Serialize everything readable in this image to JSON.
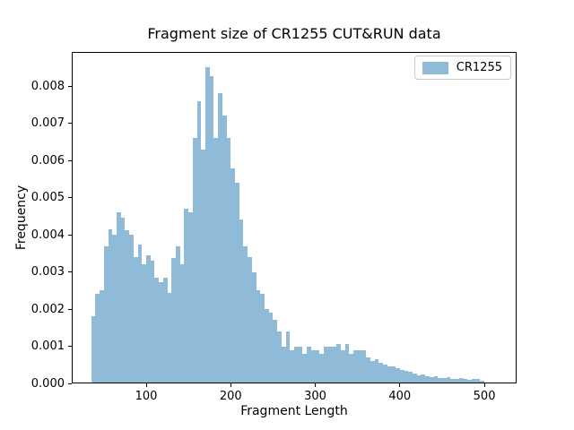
{
  "window": {
    "title": "Fragment size of CR1255 CUT&RUN data"
  },
  "legend": {
    "label": "CR1255",
    "position": "upper right"
  },
  "colors": {
    "bar": "#8fbbd9",
    "axis": "#000000",
    "background": "#ffffff",
    "legend_border": "#cccccc",
    "text": "#000000"
  },
  "chart_data": {
    "type": "bar",
    "subtype": "histogram",
    "title": "Fragment size of CR1255 CUT&RUN data",
    "xlabel": "Fragment Length",
    "ylabel": "Frequency",
    "legend_entries": [
      "CR1255"
    ],
    "legend_position": "upper right",
    "grid": false,
    "bin_start": 35,
    "bin_width": 5,
    "xlim": [
      11.9,
      538.1
    ],
    "ylim": [
      0,
      0.00892
    ],
    "x_ticks": [
      100,
      200,
      300,
      400,
      500
    ],
    "y_ticks": [
      0,
      0.001,
      0.002,
      0.003,
      0.004,
      0.005,
      0.006,
      0.007,
      0.008
    ],
    "y_tick_labels": [
      "0.000",
      "0.001",
      "0.002",
      "0.003",
      "0.004",
      "0.005",
      "0.006",
      "0.007",
      "0.008"
    ],
    "values": [
      0.0018,
      0.0024,
      0.0025,
      0.0037,
      0.00415,
      0.004,
      0.0046,
      0.00445,
      0.00413,
      0.004,
      0.00341,
      0.00373,
      0.0032,
      0.00344,
      0.0033,
      0.00284,
      0.00272,
      0.00284,
      0.00244,
      0.00337,
      0.00369,
      0.0032,
      0.0047,
      0.0046,
      0.0066,
      0.0076,
      0.0063,
      0.0085,
      0.00827,
      0.0066,
      0.0078,
      0.0072,
      0.0066,
      0.00578,
      0.0054,
      0.00441,
      0.0037,
      0.0034,
      0.003,
      0.0025,
      0.0024,
      0.002,
      0.0019,
      0.0017,
      0.0014,
      0.001,
      0.0014,
      0.0009,
      0.001,
      0.001,
      0.0008,
      0.001,
      0.0009,
      0.0009,
      0.0008,
      0.001,
      0.001,
      0.001,
      0.00105,
      0.0009,
      0.00105,
      0.0008,
      0.0009,
      0.0009,
      0.0009,
      0.0007,
      0.0006,
      0.00065,
      0.00055,
      0.0005,
      0.00045,
      0.00045,
      0.0004,
      0.00037,
      0.00033,
      0.00031,
      0.00026,
      0.00021,
      0.00025,
      0.00019,
      0.00018,
      0.00019,
      0.00015,
      0.00014,
      0.00016,
      0.00013,
      0.00011,
      0.00014,
      0.00011,
      0.0001,
      0.00011,
      0.00013,
      8e-05
    ]
  }
}
